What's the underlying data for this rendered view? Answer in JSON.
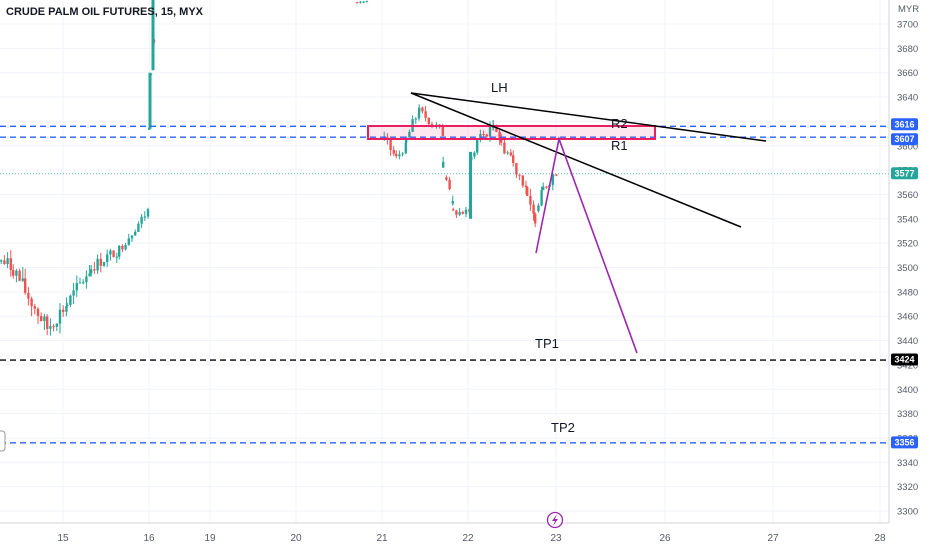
{
  "chart_data": {
    "type": "candlestick",
    "title": "CRUDE PALM OIL FUTURES, 15, MYX",
    "currency": "MYR",
    "ylim": [
      3290,
      3720
    ],
    "y_ticks": [
      3700,
      3680,
      3660,
      3640,
      3620,
      3600,
      3580,
      3560,
      3540,
      3520,
      3500,
      3480,
      3460,
      3440,
      3420,
      3400,
      3380,
      3360,
      3340,
      3320,
      3300
    ],
    "x_ticks": [
      "15",
      "16",
      "19",
      "20",
      "21",
      "22",
      "23",
      "26",
      "27",
      "28"
    ],
    "price_levels": [
      {
        "name": "R2 resistance",
        "value": 3616,
        "label": "3616",
        "style": "dashed",
        "color": "#2962ff"
      },
      {
        "name": "R1 resistance",
        "value": 3607,
        "label": "3607",
        "style": "dashed",
        "color": "#2962ff"
      },
      {
        "name": "current price",
        "value": 3577,
        "label": "3577",
        "style": "dotted",
        "color": "#26a69a"
      },
      {
        "name": "TP1",
        "value": 3424,
        "label": "3424",
        "style": "dashed",
        "color": "#000000"
      },
      {
        "name": "TP2",
        "value": 3356,
        "label": "3356",
        "style": "dashed",
        "color": "#2962ff"
      }
    ],
    "annotations": [
      "LH",
      "R2",
      "R1",
      "TP1",
      "TP2"
    ],
    "grid": true
  },
  "colors": {
    "up": "#26a69a",
    "down": "#ef5350",
    "resistance": "#2962ff",
    "zone": "#e91e63",
    "projection": "#9c27b0",
    "trendline": "#000000"
  },
  "icons": {
    "lightning": "lightning-icon"
  }
}
